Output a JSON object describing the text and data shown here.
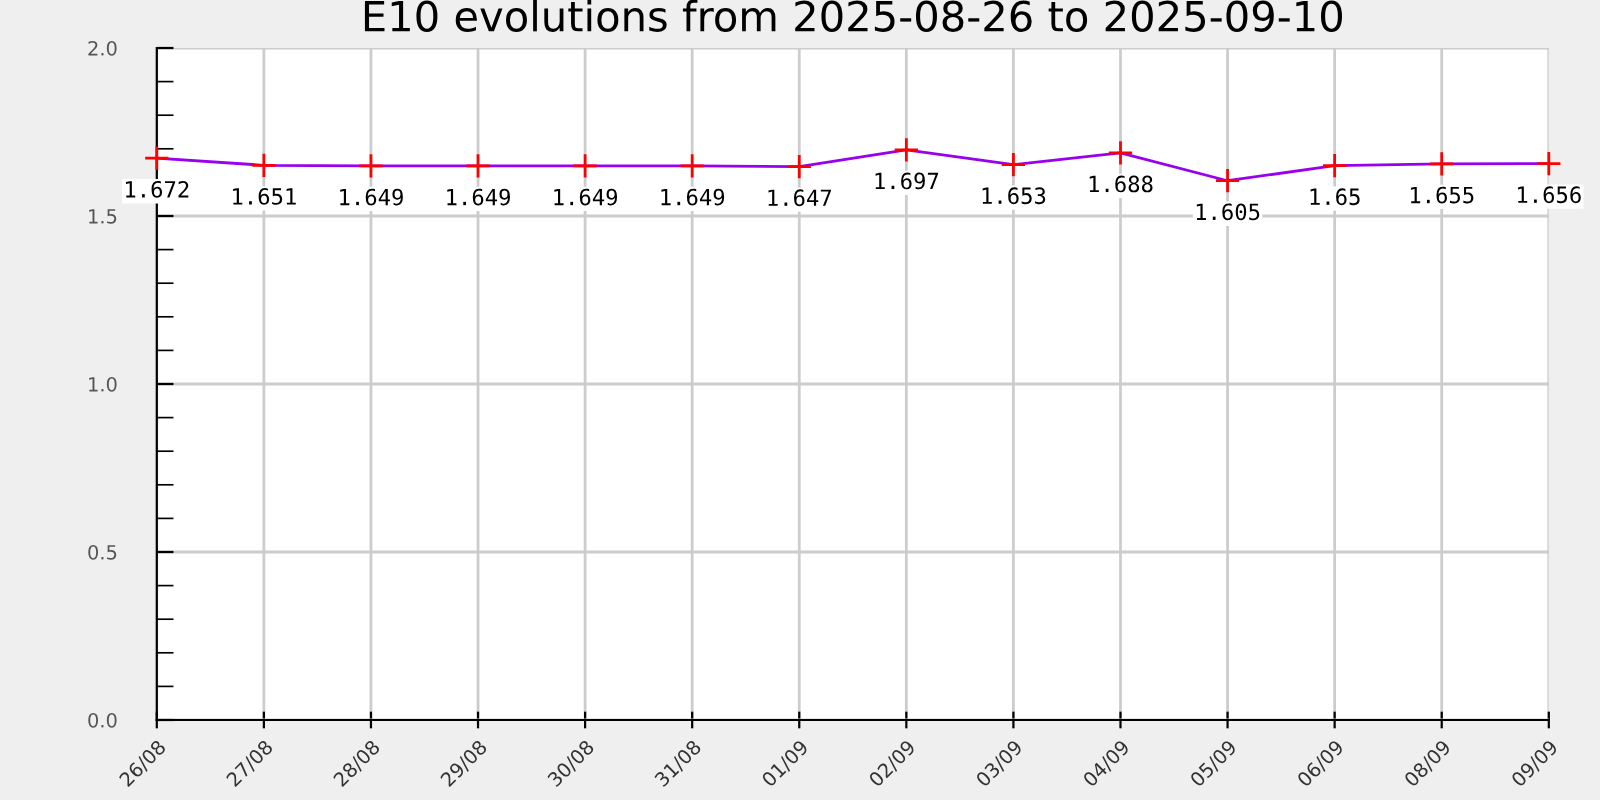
{
  "chart_data": {
    "type": "line",
    "title": "E10 evolutions from 2025-08-26 to 2025-09-10",
    "categories": [
      "26/08",
      "27/08",
      "28/08",
      "29/08",
      "30/08",
      "31/08",
      "01/09",
      "02/09",
      "03/09",
      "04/09",
      "05/09",
      "06/09",
      "08/09",
      "09/09"
    ],
    "series": [
      {
        "color": "#9900ee",
        "colors": [
          "#ff0000",
          "#ff0000",
          "#ff0000",
          "#ff0000",
          "#ff0000",
          "#ff0000",
          "#ff0000",
          "#ff0000",
          "#ff0000",
          "#ff0000",
          "#ff0000",
          "#ff0000",
          "#ff0000",
          "#ff0000"
        ],
        "values": [
          1.672,
          1.651,
          1.649,
          1.649,
          1.649,
          1.649,
          1.647,
          1.697,
          1.653,
          1.688,
          1.605,
          1.65,
          1.655,
          1.656
        ]
      }
    ],
    "ylim": [
      0,
      2.0
    ],
    "yticks": [
      {
        "value": 0,
        "label": "0.0"
      },
      {
        "value": 0.1,
        "label": null
      },
      {
        "value": 0.2,
        "label": null
      },
      {
        "value": 0.3,
        "label": null
      },
      {
        "value": 0.4,
        "label": null
      },
      0.5,
      {
        "value": 0.6,
        "label": null
      },
      {
        "value": 0.7,
        "label": null
      },
      {
        "value": 0.8,
        "label": null
      },
      {
        "value": 0.9,
        "label": null
      },
      {
        "value": 1,
        "label": "1.0"
      },
      {
        "value": 1.1,
        "label": null
      },
      {
        "value": 1.2,
        "label": null
      },
      {
        "value": 1.3,
        "label": null
      },
      {
        "value": 1.4,
        "label": null
      },
      1.5,
      {
        "value": 1.6,
        "label": null
      },
      {
        "value": 1.7,
        "label": null
      },
      {
        "value": 1.8,
        "label": null
      },
      {
        "value": 1.9,
        "label": null
      },
      {
        "value": 2,
        "label": "2.0"
      }
    ],
    "grid": true,
    "marker": "cross",
    "data_labels": true
  }
}
